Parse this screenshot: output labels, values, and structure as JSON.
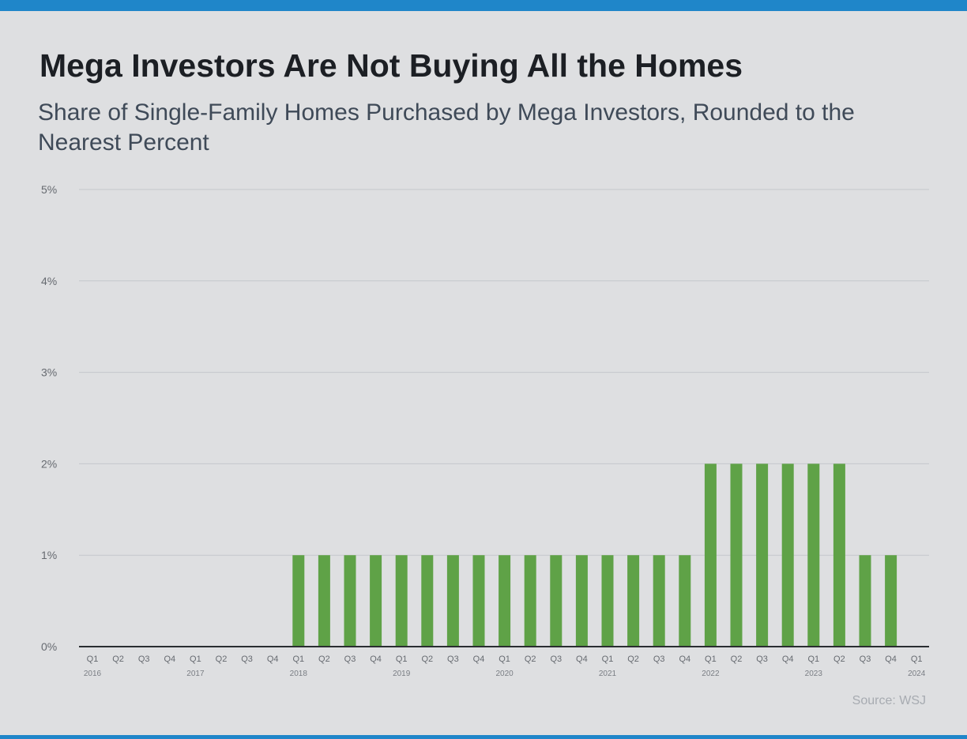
{
  "title": "Mega Investors Are Not Buying All the Homes",
  "subtitle": "Share of Single-Family Homes Purchased by Mega Investors, Rounded to the Nearest Percent",
  "source": "Source: WSJ",
  "colors": {
    "bar": "#5fa247",
    "accent": "#1f86c9",
    "background": "#dedfe1",
    "grid": "#c4c7cc"
  },
  "chart_data": {
    "type": "bar",
    "title": "Mega Investors Are Not Buying All the Homes",
    "subtitle": "Share of Single-Family Homes Purchased by Mega Investors, Rounded to the Nearest Percent",
    "xlabel": "",
    "ylabel": "",
    "ylim": [
      0,
      5
    ],
    "yticks": [
      "0%",
      "1%",
      "2%",
      "3%",
      "4%",
      "5%"
    ],
    "grid": true,
    "categories": [
      "Q1 2016",
      "Q2 2016",
      "Q3 2016",
      "Q4 2016",
      "Q1 2017",
      "Q2 2017",
      "Q3 2017",
      "Q4 2017",
      "Q1 2018",
      "Q2 2018",
      "Q3 2018",
      "Q4 2018",
      "Q1 2019",
      "Q2 2019",
      "Q3 2019",
      "Q4 2019",
      "Q1 2020",
      "Q2 2020",
      "Q3 2020",
      "Q4 2020",
      "Q1 2021",
      "Q2 2021",
      "Q3 2021",
      "Q4 2021",
      "Q1 2022",
      "Q2 2022",
      "Q3 2022",
      "Q4 2022",
      "Q1 2023",
      "Q2 2023",
      "Q3 2023",
      "Q4 2023",
      "Q1 2024"
    ],
    "tick_labels": [
      "Q1",
      "Q2",
      "Q3",
      "Q4",
      "Q1",
      "Q2",
      "Q3",
      "Q4",
      "Q1",
      "Q2",
      "Q3",
      "Q4",
      "Q1",
      "Q2",
      "Q3",
      "Q4",
      "Q1",
      "Q2",
      "Q3",
      "Q4",
      "Q1",
      "Q2",
      "Q3",
      "Q4",
      "Q1",
      "Q2",
      "Q3",
      "Q4",
      "Q1",
      "Q2",
      "Q3",
      "Q4",
      "Q1"
    ],
    "year_labels": [
      {
        "index": 0,
        "label": "2016"
      },
      {
        "index": 4,
        "label": "2017"
      },
      {
        "index": 8,
        "label": "2018"
      },
      {
        "index": 12,
        "label": "2019"
      },
      {
        "index": 16,
        "label": "2020"
      },
      {
        "index": 20,
        "label": "2021"
      },
      {
        "index": 24,
        "label": "2022"
      },
      {
        "index": 28,
        "label": "2023"
      },
      {
        "index": 32,
        "label": "2024"
      }
    ],
    "values": [
      0,
      0,
      0,
      0,
      0,
      0,
      0,
      0,
      1,
      1,
      1,
      1,
      1,
      1,
      1,
      1,
      1,
      1,
      1,
      1,
      1,
      1,
      1,
      1,
      2,
      2,
      2,
      2,
      2,
      2,
      1,
      1,
      0
    ]
  }
}
